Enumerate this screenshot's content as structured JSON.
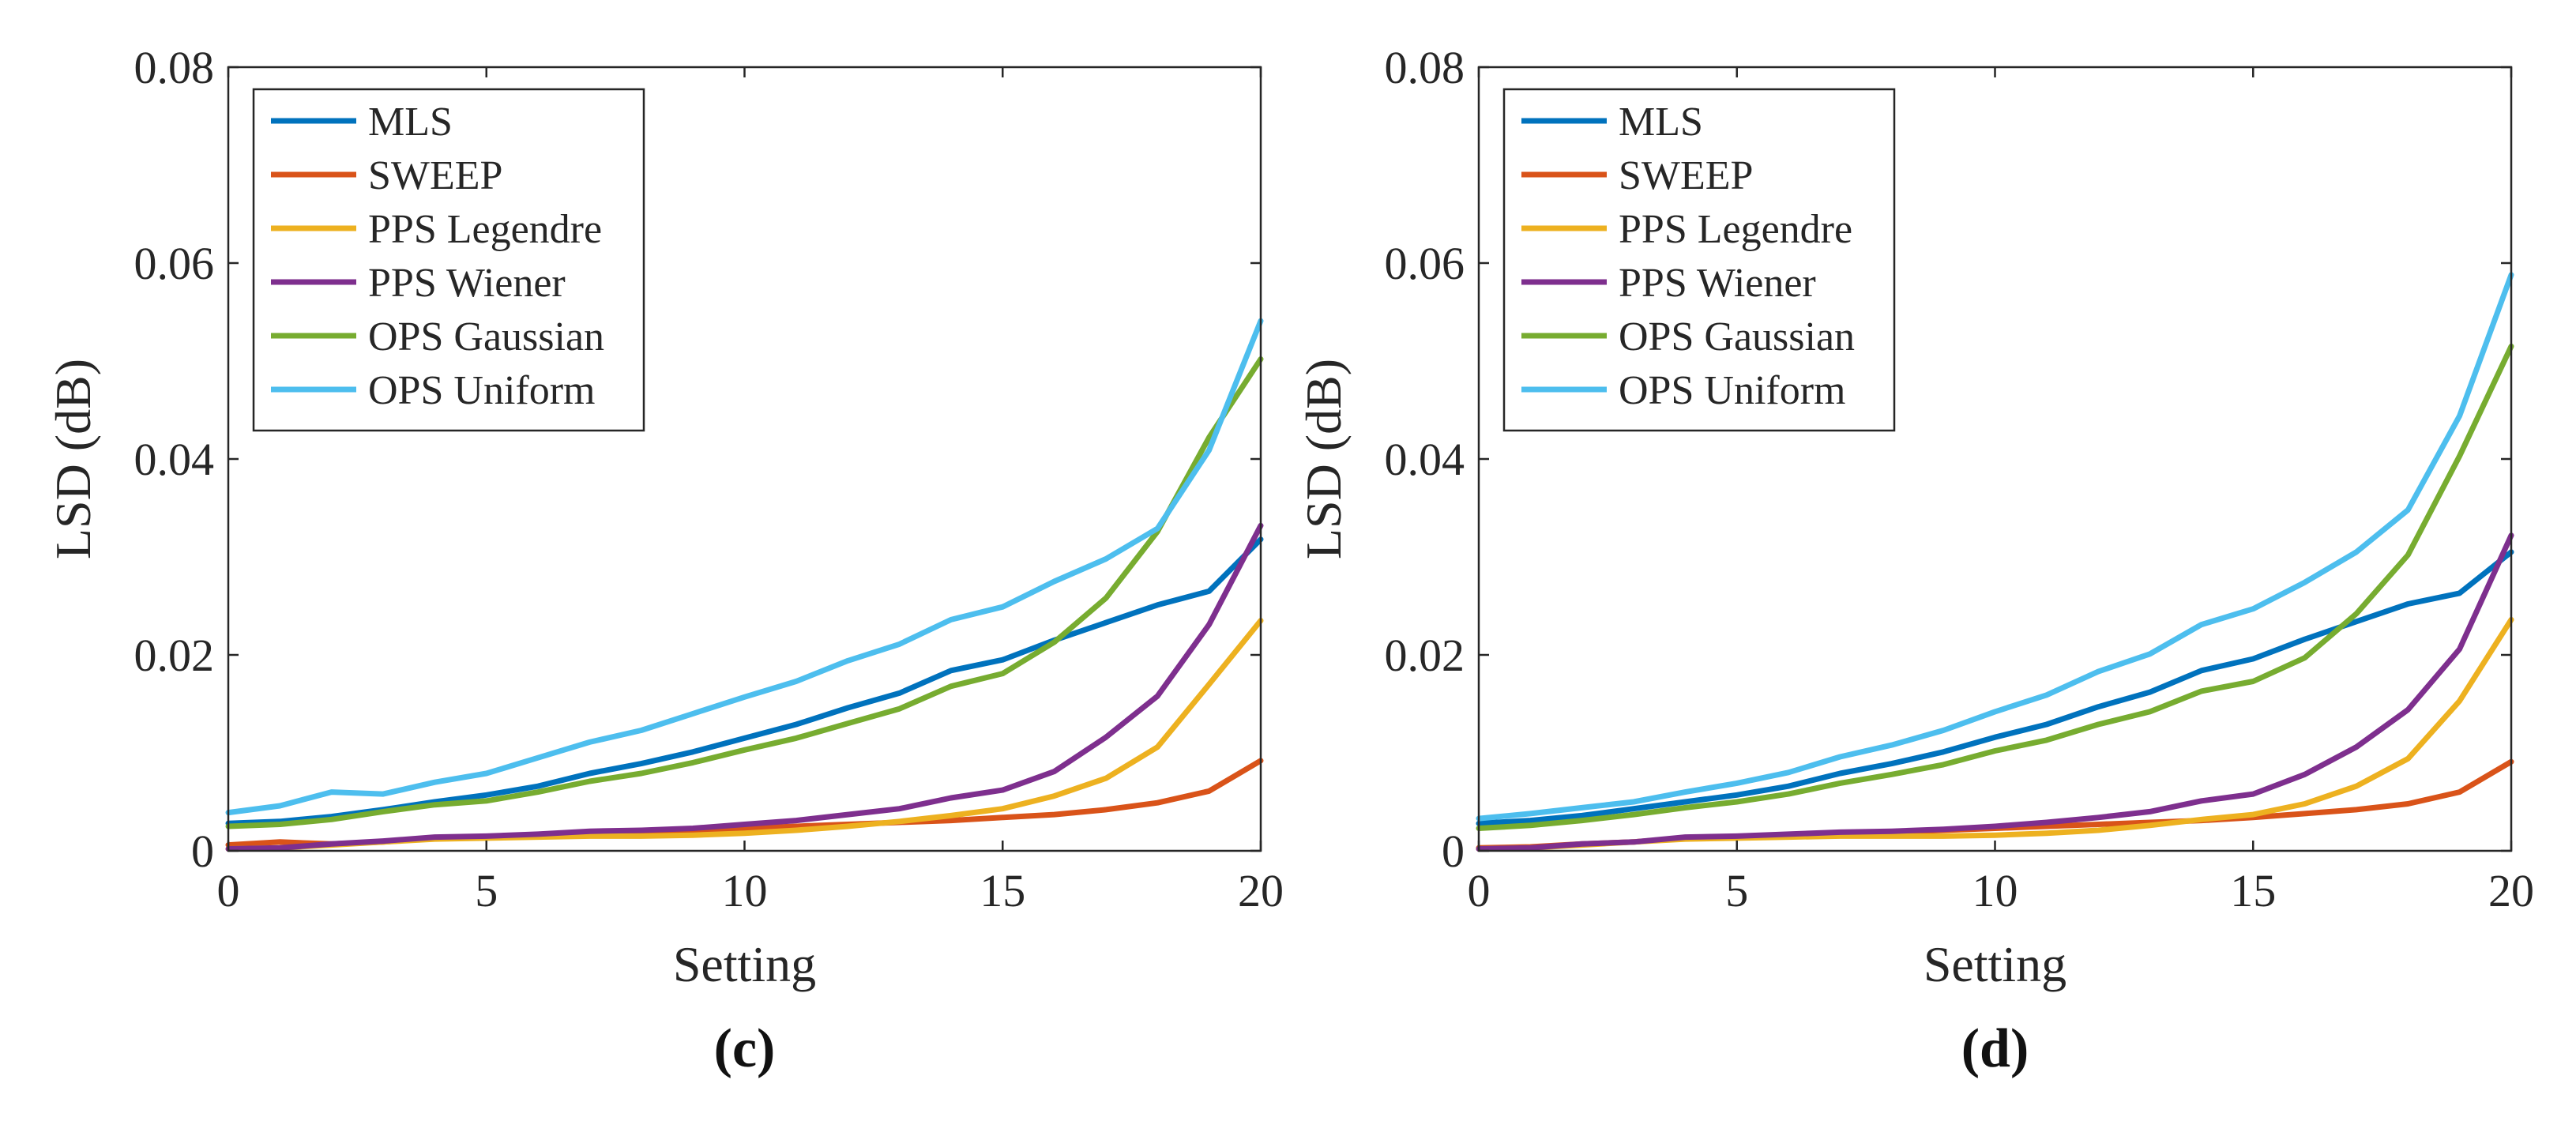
{
  "chart_data": [
    {
      "type": "line",
      "panel_label": "(c)",
      "xlabel": "Setting",
      "ylabel": "LSD (dB)",
      "xlim": [
        0,
        20
      ],
      "ylim": [
        0,
        0.08
      ],
      "x_ticks": [
        "0",
        "5",
        "10",
        "15",
        "20"
      ],
      "y_ticks": [
        "0",
        "0.02",
        "0.04",
        "0.06",
        "0.08"
      ],
      "legend_position": "top-left",
      "x": [
        0,
        1,
        2,
        3,
        4,
        5,
        6,
        7,
        8,
        9,
        10,
        11,
        12,
        13,
        14,
        15,
        16,
        17,
        18,
        19,
        20
      ],
      "series": [
        {
          "name": "MLS",
          "color": "#0072BD",
          "values": [
            0.0028,
            0.003,
            0.0035,
            0.0042,
            0.005,
            0.0057,
            0.0066,
            0.0079,
            0.0089,
            0.0101,
            0.0115,
            0.0129,
            0.0146,
            0.0161,
            0.0184,
            0.0195,
            0.0215,
            0.0233,
            0.0251,
            0.0265,
            0.0318
          ]
        },
        {
          "name": "SWEEP",
          "color": "#D95319",
          "values": [
            0.0006,
            0.0009,
            0.0007,
            0.0009,
            0.0013,
            0.0014,
            0.0016,
            0.0018,
            0.0019,
            0.0021,
            0.0023,
            0.0025,
            0.0027,
            0.0029,
            0.0031,
            0.0034,
            0.0037,
            0.0042,
            0.0049,
            0.0061,
            0.0092
          ]
        },
        {
          "name": "PPS Legendre",
          "color": "#EDB120",
          "values": [
            0.0002,
            0.0003,
            0.0006,
            0.0009,
            0.0012,
            0.0013,
            0.0014,
            0.0015,
            0.0015,
            0.0016,
            0.0018,
            0.0021,
            0.0025,
            0.003,
            0.0036,
            0.0043,
            0.0056,
            0.0074,
            0.0106,
            0.017,
            0.0235
          ]
        },
        {
          "name": "PPS Wiener",
          "color": "#7E2F8E",
          "values": [
            0.0002,
            0.0003,
            0.0007,
            0.001,
            0.0014,
            0.0015,
            0.0017,
            0.002,
            0.0021,
            0.0023,
            0.0027,
            0.0031,
            0.0037,
            0.0043,
            0.0054,
            0.0062,
            0.0081,
            0.0116,
            0.0158,
            0.0231,
            0.0332
          ]
        },
        {
          "name": "OPS Gaussian",
          "color": "#77AC30",
          "values": [
            0.0025,
            0.0027,
            0.0032,
            0.004,
            0.0047,
            0.0051,
            0.006,
            0.0071,
            0.0079,
            0.009,
            0.0103,
            0.0115,
            0.013,
            0.0145,
            0.0168,
            0.0181,
            0.0213,
            0.0258,
            0.0326,
            0.0422,
            0.0502
          ]
        },
        {
          "name": "OPS Uniform",
          "color": "#4DBEEE",
          "values": [
            0.0039,
            0.0046,
            0.006,
            0.0058,
            0.007,
            0.0079,
            0.0095,
            0.0111,
            0.0123,
            0.014,
            0.0157,
            0.0173,
            0.0194,
            0.0211,
            0.0236,
            0.0249,
            0.0275,
            0.0298,
            0.0329,
            0.0409,
            0.0541
          ]
        }
      ]
    },
    {
      "type": "line",
      "panel_label": "(d)",
      "xlabel": "Setting",
      "ylabel": "LSD (dB)",
      "xlim": [
        0,
        20
      ],
      "ylim": [
        0,
        0.08
      ],
      "x_ticks": [
        "0",
        "5",
        "10",
        "15",
        "20"
      ],
      "y_ticks": [
        "0",
        "0.02",
        "0.04",
        "0.06",
        "0.08"
      ],
      "legend_position": "top-left",
      "x": [
        0,
        1,
        2,
        3,
        4,
        5,
        6,
        7,
        8,
        9,
        10,
        11,
        12,
        13,
        14,
        15,
        16,
        17,
        18,
        19,
        20
      ],
      "series": [
        {
          "name": "MLS",
          "color": "#0072BD",
          "values": [
            0.0028,
            0.0031,
            0.0036,
            0.0043,
            0.005,
            0.0057,
            0.0066,
            0.0079,
            0.0089,
            0.0101,
            0.0116,
            0.0129,
            0.0147,
            0.0162,
            0.0184,
            0.0196,
            0.0216,
            0.0234,
            0.0252,
            0.0263,
            0.0305
          ]
        },
        {
          "name": "SWEEP",
          "color": "#D95319",
          "values": [
            0.0003,
            0.0004,
            0.0007,
            0.0009,
            0.0013,
            0.0014,
            0.0016,
            0.0018,
            0.0019,
            0.0021,
            0.0023,
            0.0025,
            0.0027,
            0.0029,
            0.0031,
            0.0034,
            0.0038,
            0.0042,
            0.0048,
            0.006,
            0.0091
          ]
        },
        {
          "name": "PPS Legendre",
          "color": "#EDB120",
          "values": [
            0.0002,
            0.0003,
            0.0006,
            0.0009,
            0.0012,
            0.0013,
            0.0014,
            0.0015,
            0.0015,
            0.0015,
            0.0016,
            0.0018,
            0.0021,
            0.0026,
            0.0032,
            0.0037,
            0.0048,
            0.0066,
            0.0094,
            0.0153,
            0.0236
          ]
        },
        {
          "name": "PPS Wiener",
          "color": "#7E2F8E",
          "values": [
            0.0002,
            0.0003,
            0.0007,
            0.0009,
            0.0014,
            0.0015,
            0.0017,
            0.0019,
            0.002,
            0.0022,
            0.0025,
            0.0029,
            0.0034,
            0.004,
            0.0051,
            0.0058,
            0.0078,
            0.0106,
            0.0144,
            0.0206,
            0.0322
          ]
        },
        {
          "name": "OPS Gaussian",
          "color": "#77AC30",
          "values": [
            0.0023,
            0.0026,
            0.0031,
            0.0037,
            0.0044,
            0.005,
            0.0058,
            0.0069,
            0.0078,
            0.0088,
            0.0102,
            0.0113,
            0.0129,
            0.0142,
            0.0163,
            0.0173,
            0.0197,
            0.0242,
            0.0302,
            0.0403,
            0.0515
          ]
        },
        {
          "name": "OPS Uniform",
          "color": "#4DBEEE",
          "values": [
            0.0033,
            0.0038,
            0.0044,
            0.005,
            0.006,
            0.0069,
            0.008,
            0.0096,
            0.0108,
            0.0123,
            0.0142,
            0.0159,
            0.0183,
            0.0201,
            0.0231,
            0.0247,
            0.0274,
            0.0305,
            0.0348,
            0.0444,
            0.0588
          ]
        }
      ]
    }
  ]
}
